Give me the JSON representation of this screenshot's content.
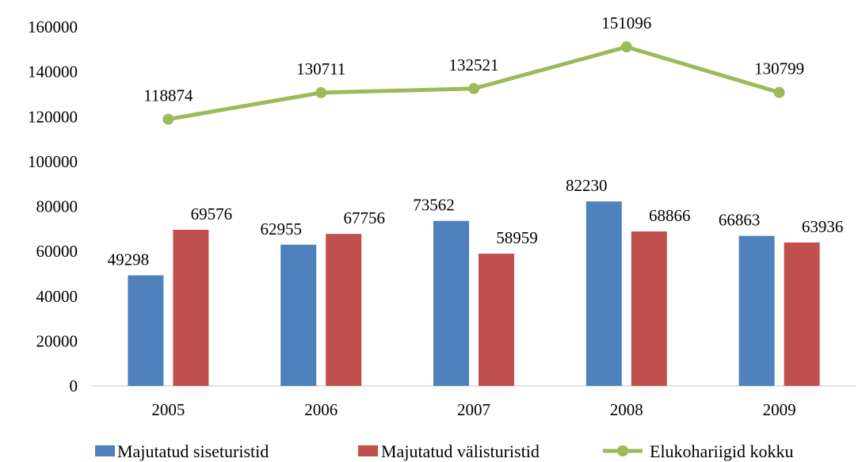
{
  "chart_data": {
    "type": "bar",
    "categories": [
      "2005",
      "2006",
      "2007",
      "2008",
      "2009"
    ],
    "ylim": [
      0,
      160000
    ],
    "yticks": [
      0,
      20000,
      40000,
      60000,
      80000,
      100000,
      120000,
      140000,
      160000
    ],
    "grid": false,
    "legend_position": "bottom",
    "series": [
      {
        "name": "Majutatud siseturistid",
        "type": "bar",
        "color": "#4F81BD",
        "values": [
          49298,
          62955,
          73562,
          82230,
          66863
        ]
      },
      {
        "name": "Majutatud välisturistid",
        "type": "bar",
        "color": "#C0504D",
        "values": [
          69576,
          67756,
          58959,
          68866,
          63936
        ]
      },
      {
        "name": "Elukohariigid kokku",
        "type": "line",
        "color": "#9BBB59",
        "values": [
          118874,
          130711,
          132521,
          151096,
          130799
        ]
      }
    ]
  }
}
